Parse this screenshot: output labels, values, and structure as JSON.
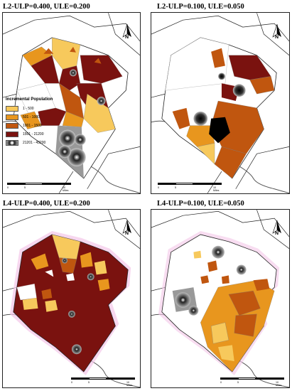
{
  "panels": [
    {
      "title": "L2-ULP=0.400, ULE=0.200"
    },
    {
      "title": "L2-ULP=0.100, ULE=0.050"
    },
    {
      "title": "L4-ULP=0.400, ULE=0.200"
    },
    {
      "title": "L4-ULP=0.100, ULE=0.050"
    }
  ],
  "north_label": "N",
  "scale_labels": [
    "0",
    "5",
    "10 Miles"
  ],
  "legend": {
    "title": "Incremental Population",
    "items": [
      {
        "label": "1 - 500",
        "color": "#f7c95c"
      },
      {
        "label": "501 - 1000",
        "color": "#e8961e"
      },
      {
        "label": "1001 - 1500",
        "color": "#c0560f"
      },
      {
        "label": "1501 - 21200",
        "color": "#7a120f"
      },
      {
        "label": "21201 - 43200",
        "color": "hotspot"
      }
    ]
  },
  "colors": {
    "class1": "#f7c95c",
    "class2": "#e8961e",
    "class3": "#c0560f",
    "class4": "#7a120f",
    "river": "#555555",
    "boundary": "#222222",
    "halo": "#f3c6e8"
  }
}
